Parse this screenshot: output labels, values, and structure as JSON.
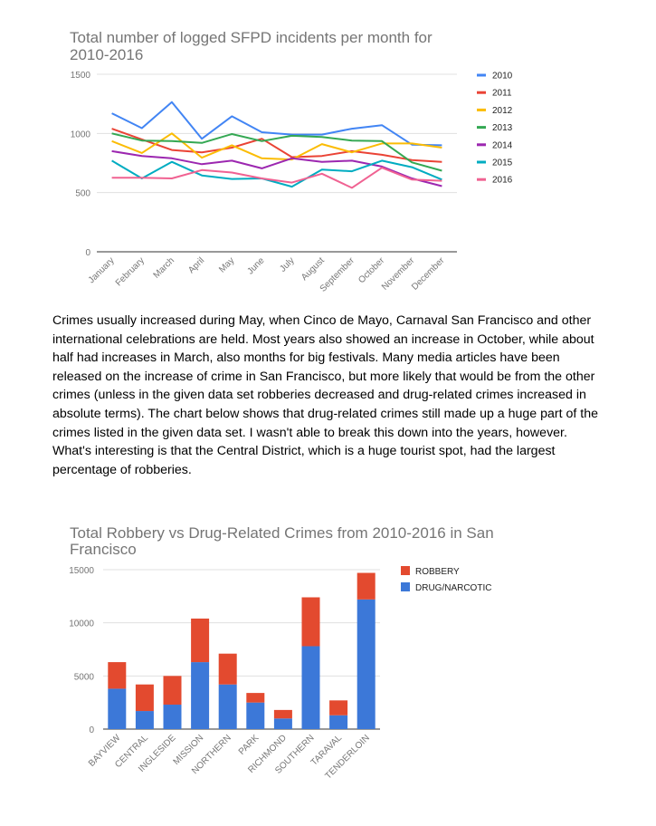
{
  "paragraph": "Crimes usually increased during May, when Cinco de Mayo, Carnaval San Francisco and other international celebrations are held. Most years also showed an increase in October, while about half had increases in March, also months for big festivals. Many media articles have been released on the increase of crime in San Francisco, but more likely that would be from the other crimes (unless in the given data set robberies decreased and drug-related crimes increased in absolute terms). The chart below shows that drug-related crimes still made up a huge part of the crimes listed in the given data set. I wasn't able to break this down into the years, however. What's interesting is that the Central District, which is a huge tourist spot, had the largest percentage of robberies.",
  "chart_data": [
    {
      "type": "line",
      "title": "Total number of logged SFPD incidents per month for 2010-2016",
      "title_lines": [
        "Total number of logged SFPD incidents per month for",
        "2010-2016"
      ],
      "xlabel": "",
      "ylabel": "",
      "ylim": [
        0,
        1500
      ],
      "yticks": [
        0,
        500,
        1000,
        1500
      ],
      "grid": true,
      "legend_position": "right",
      "categories": [
        "January",
        "February",
        "March",
        "April",
        "May",
        "June",
        "July",
        "August",
        "September",
        "October",
        "November",
        "December"
      ],
      "series": [
        {
          "name": "2010",
          "color": "#4285f4",
          "values": [
            1170,
            1045,
            1265,
            955,
            1145,
            1010,
            990,
            990,
            1040,
            1070,
            905,
            900
          ]
        },
        {
          "name": "2011",
          "color": "#ea4335",
          "values": [
            1040,
            950,
            860,
            840,
            880,
            955,
            800,
            810,
            850,
            820,
            775,
            760
          ]
        },
        {
          "name": "2012",
          "color": "#fbbc04",
          "values": [
            935,
            835,
            1000,
            795,
            900,
            790,
            780,
            910,
            840,
            915,
            915,
            880
          ]
        },
        {
          "name": "2013",
          "color": "#34a853",
          "values": [
            1000,
            940,
            935,
            920,
            995,
            935,
            980,
            970,
            940,
            935,
            755,
            685
          ]
        },
        {
          "name": "2014",
          "color": "#9c27b0",
          "values": [
            850,
            810,
            790,
            740,
            770,
            705,
            790,
            760,
            770,
            720,
            620,
            555
          ]
        },
        {
          "name": "2015",
          "color": "#00acc1",
          "values": [
            770,
            620,
            760,
            645,
            615,
            620,
            550,
            695,
            680,
            770,
            715,
            610
          ]
        },
        {
          "name": "2016",
          "color": "#f06292",
          "values": [
            625,
            625,
            620,
            690,
            670,
            620,
            585,
            660,
            540,
            710,
            610,
            600
          ]
        }
      ]
    },
    {
      "type": "bar",
      "stacked": true,
      "title": "Total Robbery vs Drug-Related Crimes from 2010-2016 in San Francisco",
      "title_lines": [
        "Total Robbery vs Drug-Related Crimes from 2010-2016 in San",
        "Francisco"
      ],
      "xlabel": "",
      "ylabel": "",
      "ylim": [
        0,
        15000
      ],
      "yticks": [
        0,
        5000,
        10000,
        15000
      ],
      "grid": true,
      "legend_position": "right",
      "categories": [
        "BAYVIEW",
        "CENTRAL",
        "INGLESIDE",
        "MISSION",
        "NORTHERN",
        "PARK",
        "RICHMOND",
        "SOUTHERN",
        "TARAVAL",
        "TENDERLOIN"
      ],
      "series": [
        {
          "name": "DRUG/NARCOTIC",
          "color": "#3c78d8",
          "values": [
            3800,
            1700,
            2300,
            6300,
            4200,
            2500,
            1000,
            7800,
            1300,
            12200
          ]
        },
        {
          "name": "ROBBERY",
          "color": "#e34a2f",
          "values": [
            2500,
            2500,
            2700,
            4100,
            2900,
            900,
            800,
            4600,
            1400,
            2500
          ]
        }
      ],
      "legend_order": [
        "ROBBERY",
        "DRUG/NARCOTIC"
      ]
    }
  ]
}
